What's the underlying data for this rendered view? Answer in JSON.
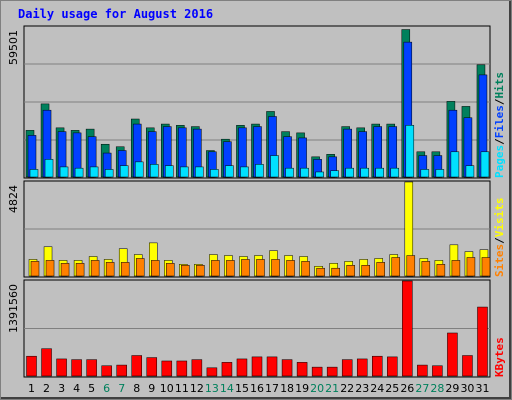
{
  "chart_data": {
    "type": "bar",
    "title": "Daily usage for August 2016",
    "days": [
      "1",
      "2",
      "3",
      "4",
      "5",
      "6",
      "7",
      "8",
      "9",
      "10",
      "11",
      "12",
      "13",
      "14",
      "15",
      "16",
      "17",
      "18",
      "19",
      "20",
      "21",
      "22",
      "23",
      "24",
      "25",
      "26",
      "27",
      "28",
      "29",
      "30",
      "31"
    ],
    "weekend_days": [
      "6",
      "7",
      "13",
      "14",
      "20",
      "21",
      "27",
      "28"
    ],
    "panels": [
      {
        "name": "top",
        "max_label": "59501",
        "ymax": 59501,
        "legend": [
          "Pages",
          "Files",
          "Hits"
        ],
        "legend_separator": "/",
        "series": [
          {
            "name": "Hits",
            "color": "#00805c",
            "values": [
              18500,
              29000,
              19500,
              18500,
              19000,
              13000,
              12000,
              23000,
              19500,
              21000,
              20500,
              20000,
              10500,
              15000,
              20500,
              21000,
              26000,
              18000,
              17500,
              8000,
              9000,
              20000,
              19500,
              21000,
              21000,
              58500,
              10000,
              10000,
              30000,
              28000,
              44500
            ]
          },
          {
            "name": "Files",
            "color": "#0040ff",
            "values": [
              16500,
              26500,
              18000,
              17500,
              16000,
              9500,
              10500,
              21000,
              18000,
              20000,
              19500,
              19000,
              10000,
              14000,
              19500,
              20000,
              24000,
              16000,
              15500,
              7000,
              8000,
              19000,
              18000,
              20000,
              20000,
              53500,
              8500,
              8500,
              26500,
              23500,
              40500
            ]
          },
          {
            "name": "Pages",
            "color": "#00e0ff",
            "values": [
              3000,
              7000,
              4000,
              3500,
              4000,
              3000,
              4500,
              6000,
              5000,
              4500,
              4000,
              4000,
              3000,
              4500,
              4000,
              5000,
              8500,
              3500,
              3500,
              2000,
              2500,
              3500,
              3500,
              3500,
              3500,
              20500,
              3000,
              3000,
              10000,
              4500,
              10000
            ]
          }
        ]
      },
      {
        "name": "middle",
        "max_label": "4824",
        "ymax": 4824,
        "legend": [
          "Sites",
          "Visits"
        ],
        "legend_separator": "/",
        "series": [
          {
            "name": "Visits",
            "color": "#ffff00",
            "values": [
              850,
              1500,
              800,
              800,
              1000,
              850,
              1400,
              1100,
              1700,
              800,
              600,
              600,
              1100,
              1050,
              1000,
              1050,
              1300,
              1050,
              1000,
              500,
              650,
              750,
              850,
              900,
              1100,
              4824,
              900,
              800,
              1600,
              1250,
              1350
            ]
          },
          {
            "name": "Sites",
            "color": "#ff8000",
            "values": [
              750,
              800,
              650,
              650,
              800,
              700,
              700,
              900,
              800,
              650,
              550,
              550,
              800,
              800,
              850,
              850,
              850,
              800,
              750,
              400,
              400,
              550,
              550,
              700,
              950,
              1050,
              750,
              600,
              800,
              950,
              950
            ]
          }
        ]
      },
      {
        "name": "bottom",
        "max_label": "1391560",
        "ymax": 1391560,
        "legend": [
          "KBytes"
        ],
        "legend_separator": "",
        "series": [
          {
            "name": "KBytes",
            "color": "#ff0000",
            "values": [
              290000,
              400000,
              250000,
              240000,
              240000,
              150000,
              160000,
              300000,
              270000,
              220000,
              220000,
              240000,
              120000,
              200000,
              250000,
              280000,
              280000,
              240000,
              200000,
              130000,
              130000,
              240000,
              250000,
              290000,
              280000,
              1391560,
              160000,
              150000,
              630000,
              300000,
              1010000
            ]
          }
        ]
      }
    ]
  }
}
